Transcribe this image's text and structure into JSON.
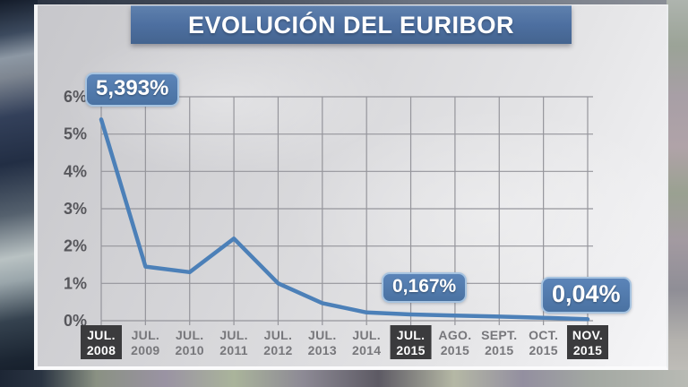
{
  "title_bar": {
    "text": "EVOLUCIÓN DEL EURIBOR"
  },
  "colors": {
    "title_bar_bg": "#4d6fa0",
    "line": "#4c80b8",
    "grid": "#95959b",
    "axis_text": "#57575c",
    "x_label_text": "#77777b",
    "highlight_box_bg": "#3b3b3d",
    "highlight_box_text": "#ffffff",
    "badge_bg": "#4f77ac",
    "badge_border": "#a6c3e0",
    "panel_bg": "#dcdcdf"
  },
  "chart_data": {
    "type": "line",
    "title": "EVOLUCIÓN DEL EURIBOR",
    "xlabel": "",
    "ylabel": "",
    "ylim": [
      0,
      6
    ],
    "grid": true,
    "y_ticks": [
      {
        "value": 6,
        "label": "6%"
      },
      {
        "value": 5,
        "label": "5%"
      },
      {
        "value": 4,
        "label": "4%"
      },
      {
        "value": 3,
        "label": "3%"
      },
      {
        "value": 2,
        "label": "2%"
      },
      {
        "value": 1,
        "label": "1%"
      },
      {
        "value": 0,
        "label": "0%"
      }
    ],
    "categories": [
      {
        "month": "JUL.",
        "year": "2008",
        "highlighted": true
      },
      {
        "month": "JUL.",
        "year": "2009",
        "highlighted": false
      },
      {
        "month": "JUL.",
        "year": "2010",
        "highlighted": false
      },
      {
        "month": "JUL.",
        "year": "2011",
        "highlighted": false
      },
      {
        "month": "JUL.",
        "year": "2012",
        "highlighted": false
      },
      {
        "month": "JUL.",
        "year": "2013",
        "highlighted": false
      },
      {
        "month": "JUL.",
        "year": "2014",
        "highlighted": false
      },
      {
        "month": "JUL.",
        "year": "2015",
        "highlighted": true
      },
      {
        "month": "AGO.",
        "year": "2015",
        "highlighted": false
      },
      {
        "month": "SEPT.",
        "year": "2015",
        "highlighted": false
      },
      {
        "month": "OCT.",
        "year": "2015",
        "highlighted": false
      },
      {
        "month": "NOV.",
        "year": "2015",
        "highlighted": true
      }
    ],
    "values": [
      5.393,
      1.45,
      1.3,
      2.2,
      1.0,
      0.47,
      0.22,
      0.167,
      0.14,
      0.11,
      0.08,
      0.04
    ],
    "annotations": [
      {
        "label": "5,393%",
        "point_index": 0
      },
      {
        "label": "0,167%",
        "point_index": 7
      },
      {
        "label": "0,04%",
        "point_index": 11
      }
    ]
  }
}
